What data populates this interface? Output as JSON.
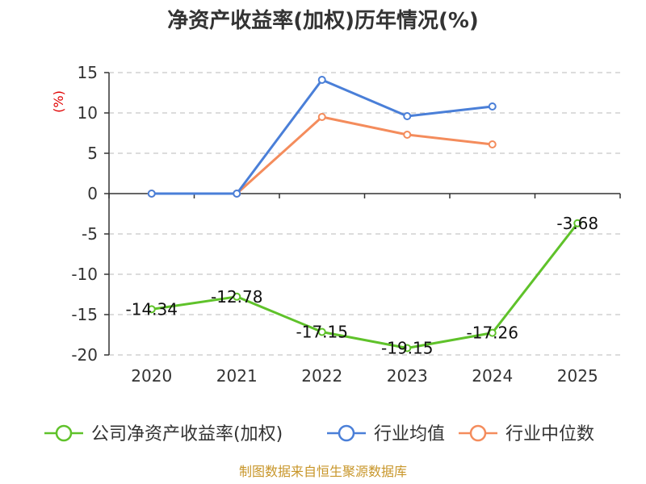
{
  "chart_data": {
    "type": "line",
    "title": "净资产收益率(加权)历年情况(%)",
    "ylabel": "(%)",
    "categories": [
      "2020",
      "2021",
      "2022",
      "2023",
      "2024",
      "2025"
    ],
    "ylim": [
      -20,
      15
    ],
    "yticks": [
      15,
      10,
      5,
      0,
      -5,
      -10,
      -15,
      -20
    ],
    "grid": true,
    "legend_position": "bottom",
    "series": [
      {
        "name": "公司净资产收益率(加权)",
        "color": "#5fc22a",
        "values": [
          -14.34,
          -12.78,
          -17.15,
          -19.15,
          -17.26,
          -3.68
        ],
        "labels": [
          "-14.34",
          "-12.78",
          "-17.15",
          "-19.15",
          "-17.26",
          "-3.68"
        ]
      },
      {
        "name": "行业均值",
        "color": "#4a7fd8",
        "values": [
          0,
          0,
          14.1,
          9.6,
          10.8,
          null
        ]
      },
      {
        "name": "行业中位数",
        "color": "#f48c5c",
        "values": [
          0,
          0,
          9.5,
          7.3,
          6.1,
          null
        ]
      }
    ]
  },
  "source": "制图数据来自恒生聚源数据库"
}
